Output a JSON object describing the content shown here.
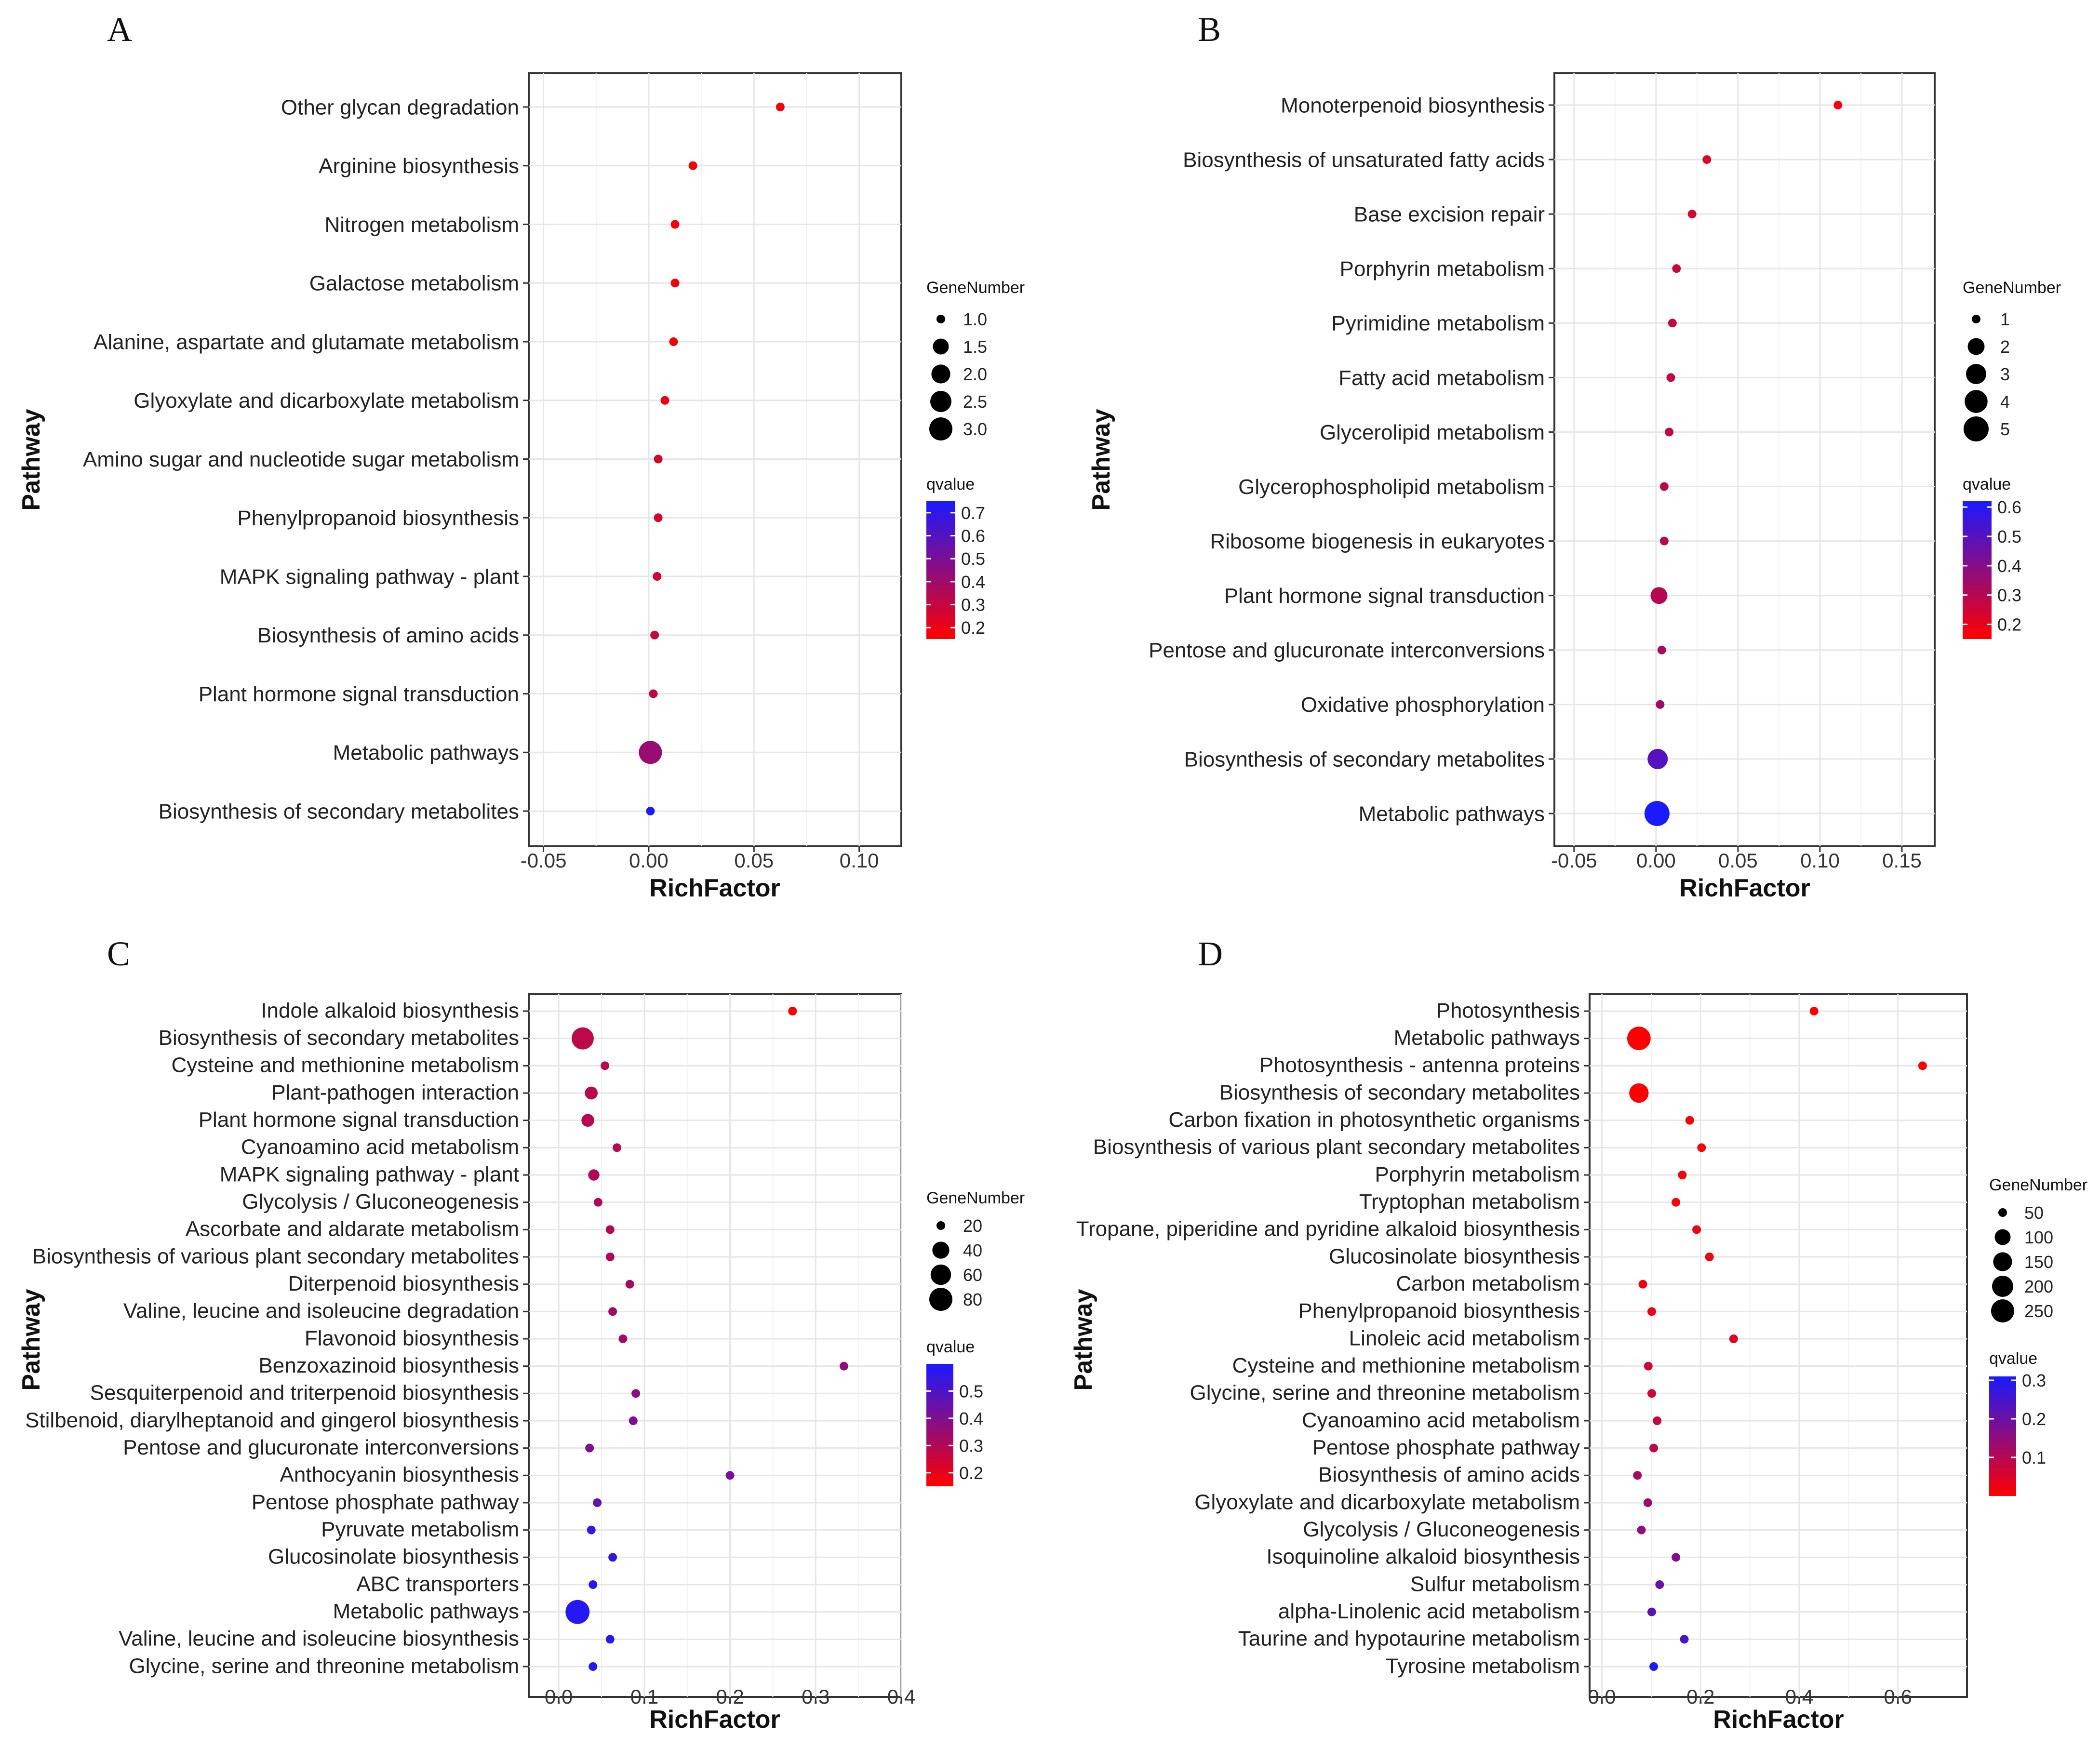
{
  "colors": {
    "low_q": "#ff0000",
    "high_q": "#1a1aff",
    "grid": "#e6e6e6",
    "panel_border": "#333333"
  },
  "legend_titles": {
    "size": "GeneNumber",
    "color": "qvalue"
  },
  "chart_data": [
    {
      "panel": "A",
      "type": "scatter",
      "xlabel": "RichFactor",
      "ylabel": "Pathway",
      "xlim": [
        -0.057,
        0.12
      ],
      "x_ticks": [
        -0.05,
        0.0,
        0.05,
        0.1
      ],
      "x_tick_labels": [
        "-0.05",
        "0.00",
        "0.05",
        "0.10"
      ],
      "size_legend": {
        "values": [
          1.0,
          1.5,
          2.0,
          2.5,
          3.0
        ],
        "labels": [
          "1.0",
          "1.5",
          "2.0",
          "2.5",
          "3.0"
        ]
      },
      "color_legend": {
        "min": 0.15,
        "max": 0.75,
        "ticks": [
          0.7,
          0.6,
          0.5,
          0.4,
          0.3,
          0.2
        ],
        "labels": [
          "0.7",
          "0.6",
          "0.5",
          "0.4",
          "0.3",
          "0.2"
        ]
      },
      "points": [
        {
          "pathway": "Other glycan degradation",
          "rich_factor": 0.0625,
          "gene_number": 1,
          "qvalue": 0.17
        },
        {
          "pathway": "Arginine biosynthesis",
          "rich_factor": 0.021,
          "gene_number": 1,
          "qvalue": 0.17
        },
        {
          "pathway": "Nitrogen metabolism",
          "rich_factor": 0.0125,
          "gene_number": 1,
          "qvalue": 0.17
        },
        {
          "pathway": "Galactose metabolism",
          "rich_factor": 0.0125,
          "gene_number": 1,
          "qvalue": 0.17
        },
        {
          "pathway": "Alanine, aspartate and glutamate metabolism",
          "rich_factor": 0.0118,
          "gene_number": 1,
          "qvalue": 0.17
        },
        {
          "pathway": "Glyoxylate and dicarboxylate metabolism",
          "rich_factor": 0.0077,
          "gene_number": 1,
          "qvalue": 0.2
        },
        {
          "pathway": "Amino sugar and nucleotide sugar metabolism",
          "rich_factor": 0.0045,
          "gene_number": 1,
          "qvalue": 0.25
        },
        {
          "pathway": "Phenylpropanoid biosynthesis",
          "rich_factor": 0.0045,
          "gene_number": 1,
          "qvalue": 0.25
        },
        {
          "pathway": "MAPK signaling pathway - plant",
          "rich_factor": 0.004,
          "gene_number": 1,
          "qvalue": 0.27
        },
        {
          "pathway": "Biosynthesis of amino acids",
          "rich_factor": 0.0028,
          "gene_number": 1,
          "qvalue": 0.3
        },
        {
          "pathway": "Plant hormone signal transduction",
          "rich_factor": 0.0022,
          "gene_number": 1,
          "qvalue": 0.32
        },
        {
          "pathway": "Metabolic pathways",
          "rich_factor": 0.0008,
          "gene_number": 3,
          "qvalue": 0.42
        },
        {
          "pathway": "Biosynthesis of secondary metabolites",
          "rich_factor": 0.0008,
          "gene_number": 1,
          "qvalue": 0.75
        }
      ]
    },
    {
      "panel": "B",
      "type": "scatter",
      "xlabel": "RichFactor",
      "ylabel": "Pathway",
      "xlim": [
        -0.062,
        0.17
      ],
      "x_ticks": [
        -0.05,
        0.0,
        0.05,
        0.1,
        0.15
      ],
      "x_tick_labels": [
        "-0.05",
        "0.00",
        "0.05",
        "0.10",
        "0.15"
      ],
      "size_legend": {
        "values": [
          1,
          2,
          3,
          4,
          5
        ],
        "labels": [
          "1",
          "2",
          "3",
          "4",
          "5"
        ]
      },
      "color_legend": {
        "min": 0.15,
        "max": 0.62,
        "ticks": [
          0.6,
          0.5,
          0.4,
          0.3,
          0.2
        ],
        "labels": [
          "0.6",
          "0.5",
          "0.4",
          "0.3",
          "0.2"
        ]
      },
      "points": [
        {
          "pathway": "Monoterpenoid biosynthesis",
          "rich_factor": 0.111,
          "gene_number": 1,
          "qvalue": 0.17
        },
        {
          "pathway": "Biosynthesis of unsaturated fatty acids",
          "rich_factor": 0.031,
          "gene_number": 1,
          "qvalue": 0.22
        },
        {
          "pathway": "Base excision repair",
          "rich_factor": 0.022,
          "gene_number": 1,
          "qvalue": 0.24
        },
        {
          "pathway": "Porphyrin metabolism",
          "rich_factor": 0.0125,
          "gene_number": 1,
          "qvalue": 0.26
        },
        {
          "pathway": "Pyrimidine metabolism",
          "rich_factor": 0.01,
          "gene_number": 1,
          "qvalue": 0.27
        },
        {
          "pathway": "Fatty acid metabolism",
          "rich_factor": 0.009,
          "gene_number": 1,
          "qvalue": 0.27
        },
        {
          "pathway": "Glycerolipid metabolism",
          "rich_factor": 0.008,
          "gene_number": 1,
          "qvalue": 0.28
        },
        {
          "pathway": "Glycerophospholipid metabolism",
          "rich_factor": 0.005,
          "gene_number": 1,
          "qvalue": 0.29
        },
        {
          "pathway": "Ribosome biogenesis in eukaryotes",
          "rich_factor": 0.005,
          "gene_number": 1,
          "qvalue": 0.29
        },
        {
          "pathway": "Plant hormone signal transduction",
          "rich_factor": 0.0018,
          "gene_number": 2,
          "qvalue": 0.3
        },
        {
          "pathway": "Pentose and glucuronate interconversions",
          "rich_factor": 0.0035,
          "gene_number": 1,
          "qvalue": 0.33
        },
        {
          "pathway": "Oxidative phosphorylation",
          "rich_factor": 0.0025,
          "gene_number": 1,
          "qvalue": 0.35
        },
        {
          "pathway": "Biosynthesis of secondary metabolites",
          "rich_factor": 0.001,
          "gene_number": 3,
          "qvalue": 0.5
        },
        {
          "pathway": "Metabolic pathways",
          "rich_factor": 0.0006,
          "gene_number": 5,
          "qvalue": 0.62
        }
      ]
    },
    {
      "panel": "C",
      "type": "scatter",
      "xlabel": "RichFactor",
      "ylabel": "Pathway",
      "xlim": [
        -0.035,
        0.4
      ],
      "x_ticks": [
        0.0,
        0.1,
        0.2,
        0.3,
        0.4
      ],
      "x_tick_labels": [
        "0.0",
        "0.1",
        "0.2",
        "0.3",
        "0.4"
      ],
      "size_legend": {
        "values": [
          20,
          40,
          60,
          80
        ],
        "labels": [
          "20",
          "40",
          "60",
          "80"
        ]
      },
      "color_legend": {
        "min": 0.15,
        "max": 0.6,
        "ticks": [
          0.5,
          0.4,
          0.3,
          0.2
        ],
        "labels": [
          "0.5",
          "0.4",
          "0.3",
          "0.2"
        ]
      },
      "points": [
        {
          "pathway": "Indole alkaloid biosynthesis",
          "rich_factor": 0.273,
          "gene_number": 3,
          "qvalue": 0.15
        },
        {
          "pathway": "Biosynthesis of secondary metabolites",
          "rich_factor": 0.028,
          "gene_number": 72,
          "qvalue": 0.28
        },
        {
          "pathway": "Cysteine and methionine metabolism",
          "rich_factor": 0.054,
          "gene_number": 16,
          "qvalue": 0.29
        },
        {
          "pathway": "Plant-pathogen interaction",
          "rich_factor": 0.038,
          "gene_number": 25,
          "qvalue": 0.29
        },
        {
          "pathway": "Plant hormone signal transduction",
          "rich_factor": 0.034,
          "gene_number": 25,
          "qvalue": 0.29
        },
        {
          "pathway": "Cyanoamino acid metabolism",
          "rich_factor": 0.068,
          "gene_number": 14,
          "qvalue": 0.29
        },
        {
          "pathway": "MAPK signaling pathway - plant",
          "rich_factor": 0.041,
          "gene_number": 22,
          "qvalue": 0.3
        },
        {
          "pathway": "Glycolysis / Gluconeogenesis",
          "rich_factor": 0.046,
          "gene_number": 20,
          "qvalue": 0.3
        },
        {
          "pathway": "Ascorbate and aldarate metabolism",
          "rich_factor": 0.06,
          "gene_number": 14,
          "qvalue": 0.3
        },
        {
          "pathway": "Biosynthesis of various plant secondary metabolites",
          "rich_factor": 0.06,
          "gene_number": 14,
          "qvalue": 0.31
        },
        {
          "pathway": "Diterpenoid biosynthesis",
          "rich_factor": 0.083,
          "gene_number": 8,
          "qvalue": 0.33
        },
        {
          "pathway": "Valine, leucine and isoleucine degradation",
          "rich_factor": 0.063,
          "gene_number": 12,
          "qvalue": 0.33
        },
        {
          "pathway": "Flavonoid biosynthesis",
          "rich_factor": 0.075,
          "gene_number": 9,
          "qvalue": 0.34
        },
        {
          "pathway": "Benzoxazinoid biosynthesis",
          "rich_factor": 0.333,
          "gene_number": 2,
          "qvalue": 0.37
        },
        {
          "pathway": "Sesquiterpenoid and triterpenoid biosynthesis",
          "rich_factor": 0.09,
          "gene_number": 7,
          "qvalue": 0.38
        },
        {
          "pathway": "Stilbenoid, diarylheptanoid and gingerol biosynthesis",
          "rich_factor": 0.087,
          "gene_number": 7,
          "qvalue": 0.4
        },
        {
          "pathway": "Pentose and glucuronate interconversions",
          "rich_factor": 0.036,
          "gene_number": 16,
          "qvalue": 0.4
        },
        {
          "pathway": "Anthocyanin biosynthesis",
          "rich_factor": 0.2,
          "gene_number": 2,
          "qvalue": 0.42
        },
        {
          "pathway": "Pentose phosphate pathway",
          "rich_factor": 0.045,
          "gene_number": 12,
          "qvalue": 0.45
        },
        {
          "pathway": "Pyruvate metabolism",
          "rich_factor": 0.038,
          "gene_number": 13,
          "qvalue": 0.55
        },
        {
          "pathway": "Glucosinolate biosynthesis",
          "rich_factor": 0.063,
          "gene_number": 8,
          "qvalue": 0.56
        },
        {
          "pathway": "ABC transporters",
          "rich_factor": 0.04,
          "gene_number": 12,
          "qvalue": 0.57
        },
        {
          "pathway": "Metabolic pathways",
          "rich_factor": 0.022,
          "gene_number": 88,
          "qvalue": 0.58
        },
        {
          "pathway": "Valine, leucine and isoleucine biosynthesis",
          "rich_factor": 0.06,
          "gene_number": 8,
          "qvalue": 0.58
        },
        {
          "pathway": "Glycine, serine and threonine metabolism",
          "rich_factor": 0.04,
          "gene_number": 12,
          "qvalue": 0.58
        }
      ]
    },
    {
      "panel": "D",
      "type": "scatter",
      "xlabel": "RichFactor",
      "ylabel": "Pathway",
      "xlim": [
        -0.025,
        0.74
      ],
      "x_ticks": [
        0.0,
        0.2,
        0.4,
        0.6
      ],
      "x_tick_labels": [
        "0.0",
        "0.2",
        "0.4",
        "0.6"
      ],
      "size_legend": {
        "values": [
          50,
          100,
          150,
          200,
          250
        ],
        "labels": [
          "50",
          "100",
          "150",
          "200",
          "250"
        ]
      },
      "color_legend": {
        "min": 0.0,
        "max": 0.31,
        "ticks": [
          0.3,
          0.2,
          0.1
        ],
        "labels": [
          "0.3",
          "0.2",
          "0.1"
        ]
      },
      "points": [
        {
          "pathway": "Photosynthesis",
          "rich_factor": 0.43,
          "gene_number": 50,
          "qvalue": 0.0
        },
        {
          "pathway": "Metabolic pathways",
          "rich_factor": 0.075,
          "gene_number": 260,
          "qvalue": 0.0
        },
        {
          "pathway": "Photosynthesis - antenna proteins",
          "rich_factor": 0.65,
          "gene_number": 40,
          "qvalue": 0.0
        },
        {
          "pathway": "Biosynthesis of secondary metabolites",
          "rich_factor": 0.075,
          "gene_number": 160,
          "qvalue": 0.0
        },
        {
          "pathway": "Carbon fixation in photosynthetic organisms",
          "rich_factor": 0.178,
          "gene_number": 40,
          "qvalue": 0.01
        },
        {
          "pathway": "Biosynthesis of various plant secondary metabolites",
          "rich_factor": 0.202,
          "gene_number": 40,
          "qvalue": 0.01
        },
        {
          "pathway": "Porphyrin metabolism",
          "rich_factor": 0.163,
          "gene_number": 35,
          "qvalue": 0.01
        },
        {
          "pathway": "Tryptophan metabolism",
          "rich_factor": 0.15,
          "gene_number": 30,
          "qvalue": 0.01
        },
        {
          "pathway": "Tropane, piperidine and pyridine alkaloid biosynthesis",
          "rich_factor": 0.192,
          "gene_number": 28,
          "qvalue": 0.02
        },
        {
          "pathway": "Glucosinolate biosynthesis",
          "rich_factor": 0.218,
          "gene_number": 22,
          "qvalue": 0.02
        },
        {
          "pathway": "Carbon metabolism",
          "rich_factor": 0.083,
          "gene_number": 50,
          "qvalue": 0.02
        },
        {
          "pathway": "Phenylpropanoid biosynthesis",
          "rich_factor": 0.101,
          "gene_number": 40,
          "qvalue": 0.03
        },
        {
          "pathway": "Linoleic acid metabolism",
          "rich_factor": 0.267,
          "gene_number": 15,
          "qvalue": 0.04
        },
        {
          "pathway": "Cysteine and methionine metabolism",
          "rich_factor": 0.094,
          "gene_number": 32,
          "qvalue": 0.06
        },
        {
          "pathway": "Glycine, serine and threonine metabolism",
          "rich_factor": 0.101,
          "gene_number": 30,
          "qvalue": 0.07
        },
        {
          "pathway": "Cyanoamino acid metabolism",
          "rich_factor": 0.112,
          "gene_number": 28,
          "qvalue": 0.08
        },
        {
          "pathway": "Pentose phosphate pathway",
          "rich_factor": 0.105,
          "gene_number": 28,
          "qvalue": 0.09
        },
        {
          "pathway": "Biosynthesis of amino acids",
          "rich_factor": 0.072,
          "gene_number": 45,
          "qvalue": 0.12
        },
        {
          "pathway": "Glyoxylate and dicarboxylate metabolism",
          "rich_factor": 0.093,
          "gene_number": 30,
          "qvalue": 0.13
        },
        {
          "pathway": "Glycolysis / Gluconeogenesis",
          "rich_factor": 0.08,
          "gene_number": 35,
          "qvalue": 0.15
        },
        {
          "pathway": "Isoquinoline alkaloid biosynthesis",
          "rich_factor": 0.15,
          "gene_number": 15,
          "qvalue": 0.17
        },
        {
          "pathway": "Sulfur metabolism",
          "rich_factor": 0.117,
          "gene_number": 20,
          "qvalue": 0.2
        },
        {
          "pathway": "alpha-Linolenic acid metabolism",
          "rich_factor": 0.101,
          "gene_number": 22,
          "qvalue": 0.22
        },
        {
          "pathway": "Taurine and hypotaurine metabolism",
          "rich_factor": 0.167,
          "gene_number": 10,
          "qvalue": 0.25
        },
        {
          "pathway": "Tyrosine metabolism",
          "rich_factor": 0.105,
          "gene_number": 18,
          "qvalue": 0.31
        }
      ]
    }
  ]
}
